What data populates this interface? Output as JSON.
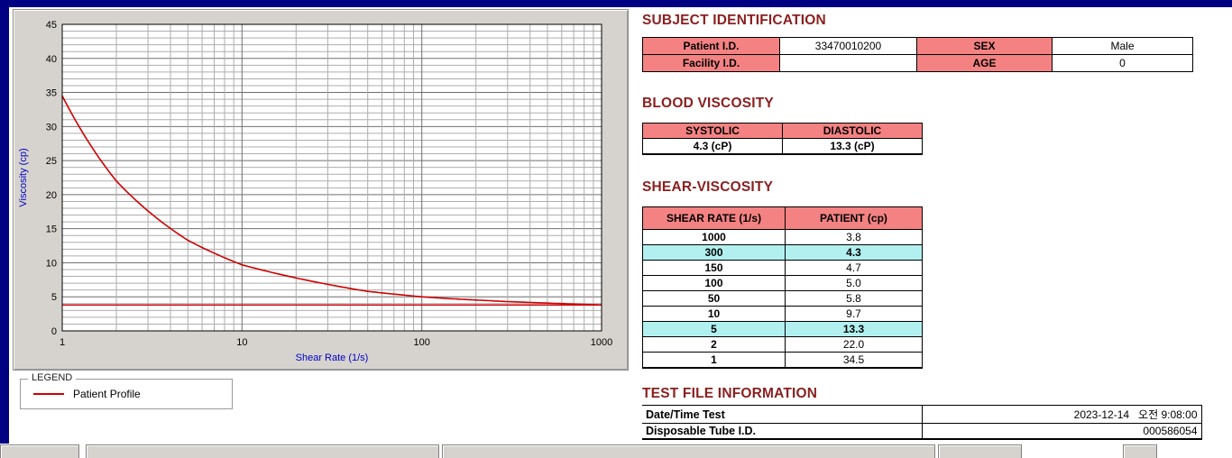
{
  "colors": {
    "heading": "#8b1f1f",
    "table_header_bg": "#f48282",
    "highlight_bg": "#b2f0f0",
    "curve": "#cf0000",
    "axis_label": "#0000c8",
    "titlebar": "#000082"
  },
  "chart_data": {
    "type": "line",
    "title": "",
    "xlabel": "Shear Rate (1/s)",
    "ylabel": "Viscosity (cp)",
    "x_scale": "log",
    "xlim": [
      1,
      1000
    ],
    "ylim": [
      0,
      45
    ],
    "x_ticks": [
      1,
      10,
      100,
      1000
    ],
    "y_ticks": [
      0,
      5,
      10,
      15,
      20,
      25,
      30,
      35,
      40,
      45
    ],
    "y_minor_step": 1,
    "grid": true,
    "series": [
      {
        "name": "Patient Profile",
        "color": "#cf0000",
        "x": [
          1,
          2,
          5,
          10,
          50,
          100,
          150,
          300,
          1000
        ],
        "y": [
          34.5,
          22.0,
          13.3,
          9.7,
          5.8,
          5.0,
          4.7,
          4.3,
          3.8
        ]
      }
    ],
    "reference_line": {
      "y": 3.8,
      "color": "#cf0000"
    },
    "legend": {
      "title": "LEGEND",
      "entries": [
        "Patient Profile"
      ],
      "position": "below-left"
    }
  },
  "subject_identification": {
    "heading": "SUBJECT IDENTIFICATION",
    "rows": [
      {
        "label1": "Patient I.D.",
        "value1": "33470010200",
        "label2": "SEX",
        "value2": "Male"
      },
      {
        "label1": "Facility I.D.",
        "value1": "",
        "label2": "AGE",
        "value2": "0"
      }
    ]
  },
  "blood_viscosity": {
    "heading": "BLOOD VISCOSITY",
    "columns": [
      "SYSTOLIC",
      "DIASTOLIC"
    ],
    "values": [
      "4.3 (cP)",
      "13.3 (cP)"
    ]
  },
  "shear_viscosity": {
    "heading": "SHEAR-VISCOSITY",
    "columns": [
      "SHEAR RATE (1/s)",
      "PATIENT (cp)"
    ],
    "rows": [
      {
        "rate": "1000",
        "value": "3.8",
        "highlight": false
      },
      {
        "rate": "300",
        "value": "4.3",
        "highlight": true
      },
      {
        "rate": "150",
        "value": "4.7",
        "highlight": false
      },
      {
        "rate": "100",
        "value": "5.0",
        "highlight": false
      },
      {
        "rate": "50",
        "value": "5.8",
        "highlight": false
      },
      {
        "rate": "10",
        "value": "9.7",
        "highlight": false
      },
      {
        "rate": "5",
        "value": "13.3",
        "highlight": true
      },
      {
        "rate": "2",
        "value": "22.0",
        "highlight": false
      },
      {
        "rate": "1",
        "value": "34.5",
        "highlight": false
      }
    ]
  },
  "test_file_information": {
    "heading": "TEST FILE INFORMATION",
    "rows": [
      {
        "label": "Date/Time Test",
        "value": "2023-12-14   오전 9:08:00"
      },
      {
        "label": "Disposable Tube I.D.",
        "value": "000586054"
      }
    ]
  }
}
